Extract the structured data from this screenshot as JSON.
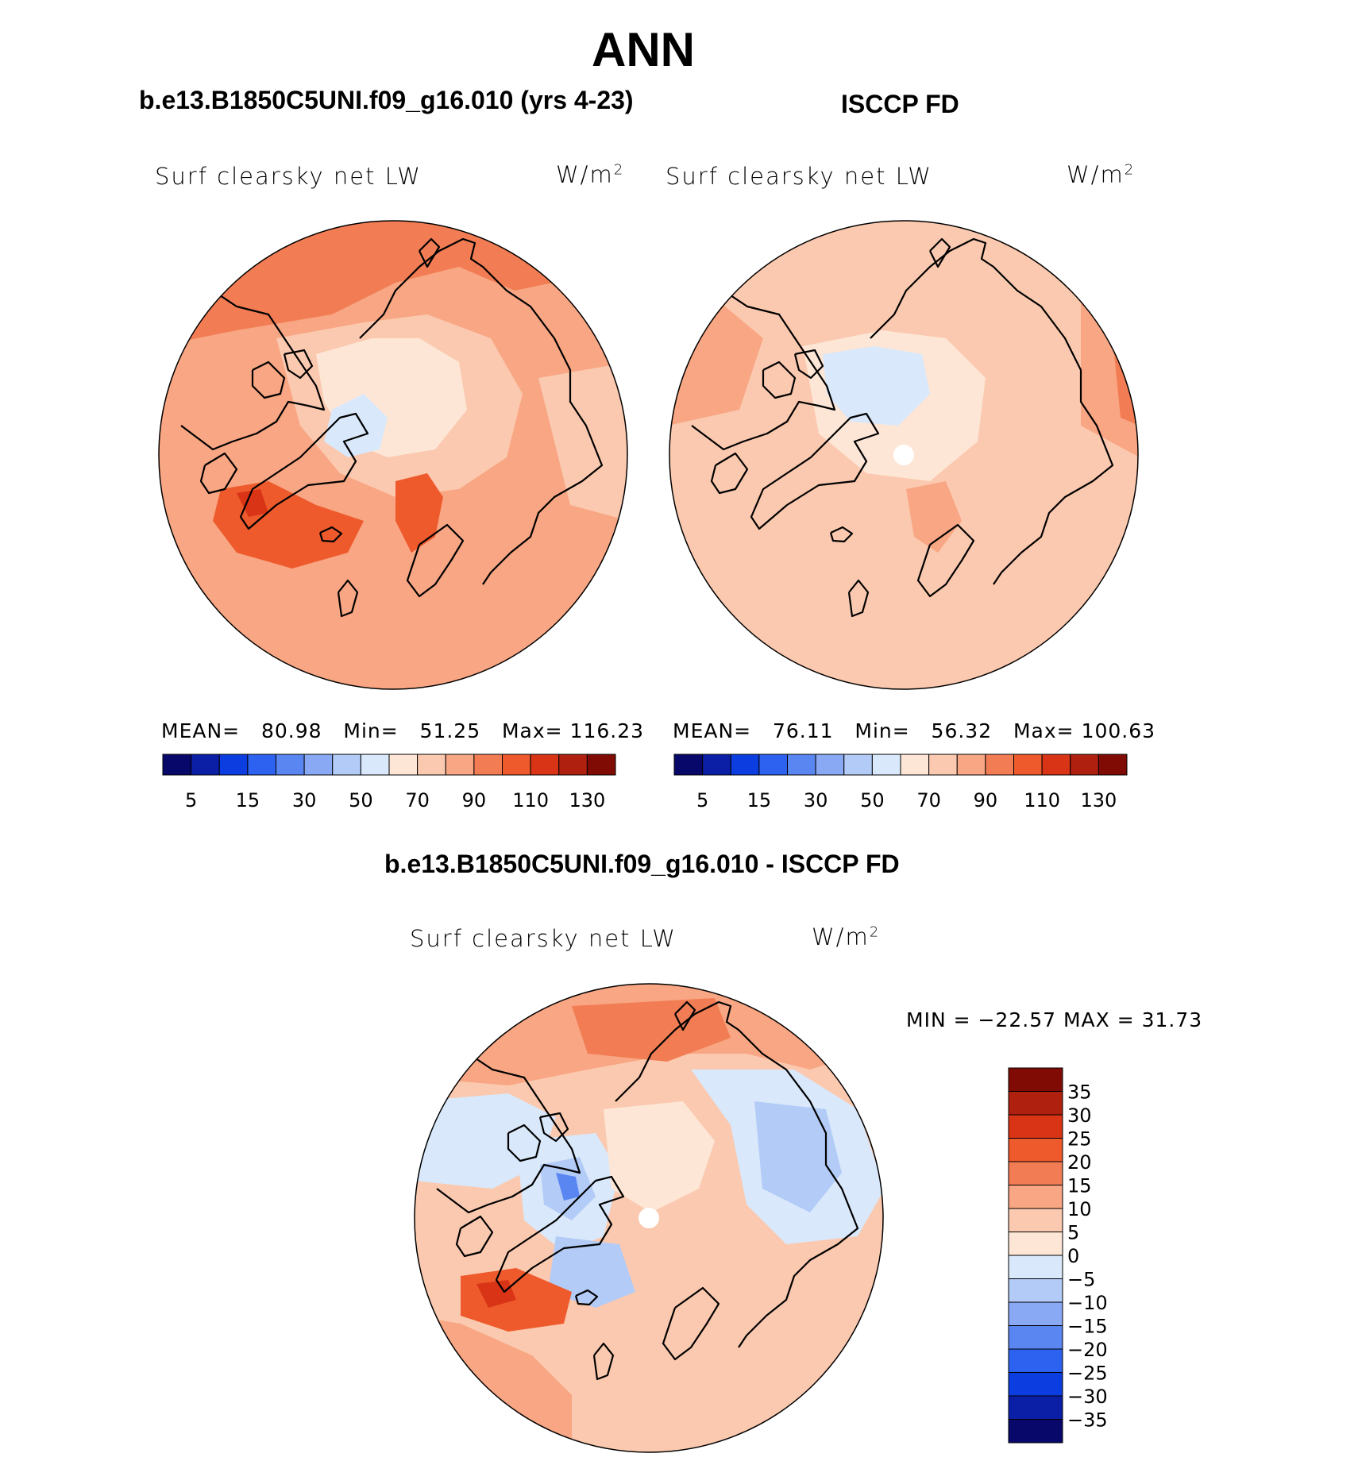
{
  "title": "ANN",
  "panels": [
    {
      "heading": "b.e13.B1850C5UNI.f09_g16.010 (yrs 4-23)",
      "variable": "Surf clearsky net LW",
      "units_base": "W/m",
      "units_exp": "2",
      "stats": {
        "mean_label": "MEAN=",
        "mean": "80.98",
        "min_label": "Min=",
        "min": "51.25",
        "max_label": "Max=",
        "max": "116.23"
      },
      "has_pole_hole": false
    },
    {
      "heading": "ISCCP FD",
      "variable": "Surf clearsky net LW",
      "units_base": "W/m",
      "units_exp": "2",
      "stats": {
        "mean_label": "MEAN=",
        "mean": "76.11",
        "min_label": "Min=",
        "min": "56.32",
        "max_label": "Max=",
        "max": "100.63"
      },
      "has_pole_hole": true
    },
    {
      "heading": "b.e13.B1850C5UNI.f09_g16.010 - ISCCP FD",
      "variable": "Surf clearsky net LW",
      "units_base": "W/m",
      "units_exp": "2",
      "stats_text": "MIN = −22.57 MAX =   31.73",
      "has_pole_hole": true
    }
  ],
  "chart_data": [
    {
      "type": "heatmap",
      "projection": "north polar stereographic",
      "panel": "model",
      "colorbar": {
        "orientation": "horizontal",
        "levels": [
          5,
          15,
          30,
          50,
          70,
          90,
          110,
          130
        ],
        "tick_labels": [
          "5",
          "15",
          "30",
          "50",
          "70",
          "90",
          "110",
          "130"
        ],
        "colors": [
          "#08086b",
          "#0a1fa6",
          "#0b3de0",
          "#2d62f0",
          "#5a86f2",
          "#8aa9f5",
          "#b3cbf7",
          "#d9e8fa",
          "#fde6d6",
          "#fbc9af",
          "#f8a683",
          "#f27d54",
          "#ee5a2c",
          "#d93416",
          "#b0200e",
          "#800b05"
        ]
      },
      "stats": {
        "mean": 80.98,
        "min": 51.25,
        "max": 116.23
      }
    },
    {
      "type": "heatmap",
      "projection": "north polar stereographic",
      "panel": "observations",
      "colorbar": {
        "orientation": "horizontal",
        "levels": [
          5,
          15,
          30,
          50,
          70,
          90,
          110,
          130
        ],
        "tick_labels": [
          "5",
          "15",
          "30",
          "50",
          "70",
          "90",
          "110",
          "130"
        ],
        "colors": [
          "#08086b",
          "#0a1fa6",
          "#0b3de0",
          "#2d62f0",
          "#5a86f2",
          "#8aa9f5",
          "#b3cbf7",
          "#d9e8fa",
          "#fde6d6",
          "#fbc9af",
          "#f8a683",
          "#f27d54",
          "#ee5a2c",
          "#d93416",
          "#b0200e",
          "#800b05"
        ]
      },
      "stats": {
        "mean": 76.11,
        "min": 56.32,
        "max": 100.63
      }
    },
    {
      "type": "heatmap",
      "projection": "north polar stereographic",
      "panel": "difference",
      "colorbar": {
        "orientation": "vertical",
        "tick_labels": [
          "35",
          "30",
          "25",
          "20",
          "15",
          "10",
          "5",
          "0",
          "−5",
          "−10",
          "−15",
          "−20",
          "−25",
          "−30",
          "−35"
        ],
        "colors": [
          "#800b05",
          "#b0200e",
          "#d93416",
          "#ee5a2c",
          "#f27d54",
          "#f8a683",
          "#fbc9af",
          "#fde6d6",
          "#d9e8fa",
          "#b3cbf7",
          "#8aa9f5",
          "#5a86f2",
          "#2d62f0",
          "#0b3de0",
          "#0a1fa6",
          "#08086b"
        ]
      },
      "stats": {
        "min": -22.57,
        "max": 31.73
      }
    }
  ]
}
